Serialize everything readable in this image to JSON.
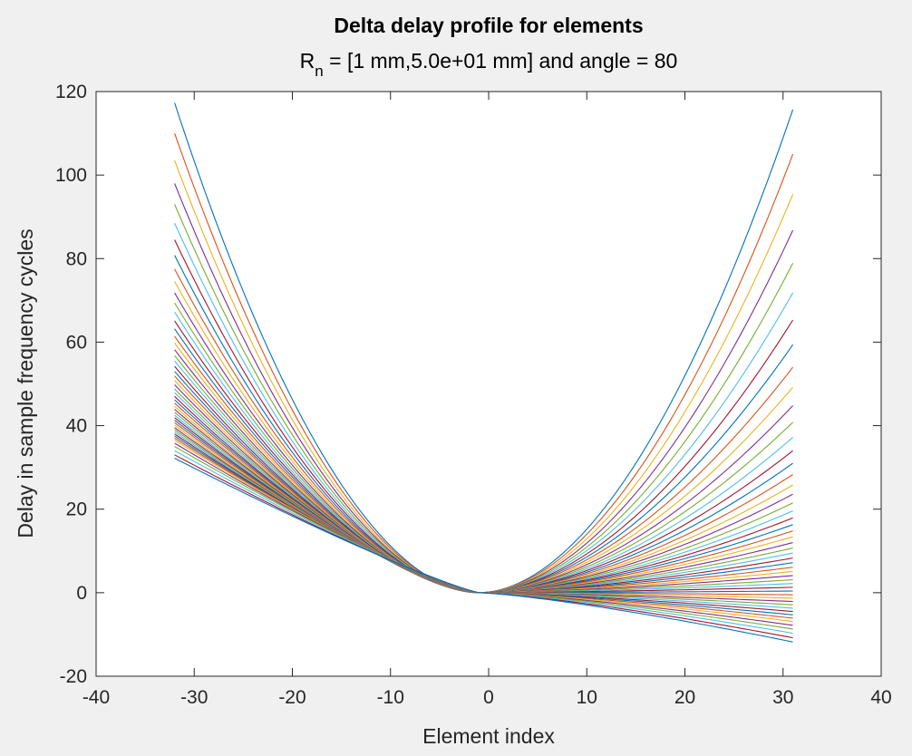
{
  "chart_data": {
    "type": "line",
    "title": "Delta delay profile for elements",
    "subtitle_main": "R",
    "subtitle_sub": "n",
    "subtitle_rest": " = [1 mm,5.0e+01 mm] and angle = 80",
    "xlabel": "Element index",
    "ylabel": "Delay in sample frequency cycles",
    "xlim": [
      -40,
      40
    ],
    "ylim": [
      -20,
      120
    ],
    "xticks": [
      -40,
      -30,
      -20,
      -10,
      0,
      10,
      20,
      30,
      40
    ],
    "yticks": [
      -20,
      0,
      20,
      40,
      60,
      80,
      100,
      120
    ],
    "x_range": [
      -32,
      31
    ],
    "grid": false,
    "series_count": 50,
    "r_min_mm": 1,
    "r_max_mm": 50,
    "angle_deg": 80,
    "endpoints_left": [
      117.3,
      110,
      103.5,
      98,
      93,
      88.5,
      84.5,
      80.8,
      77.5,
      74.5,
      71.8,
      69.4,
      67.2,
      65.1,
      63.2,
      61.4,
      59.8,
      58.2,
      56.8,
      55.5,
      54.2,
      53,
      51.9,
      50.8,
      49.8,
      48.8,
      47.9,
      47,
      46.2,
      45.4,
      44.6,
      43.9,
      43.2,
      42.5,
      41.9,
      41.3,
      40.7,
      40.1,
      39.5,
      39,
      38.5,
      38,
      37.5,
      37,
      36.5,
      35.8,
      35,
      34,
      33,
      32.2
    ],
    "endpoints_right": [
      115.7,
      105,
      95.4,
      86.8,
      78.9,
      71.8,
      65.3,
      59.4,
      54,
      49.2,
      44.8,
      40.8,
      37.2,
      34,
      31,
      28.3,
      25.8,
      23.6,
      21.5,
      19.6,
      17.9,
      16.3,
      14.8,
      13.4,
      12,
      10.7,
      9.5,
      8.3,
      7.2,
      6.1,
      5.1,
      4.1,
      3.1,
      2.2,
      1.3,
      0.4,
      -0.5,
      -1.3,
      -2.1,
      -2.9,
      -3.7,
      -4.5,
      -5.3,
      -6.1,
      -6.9,
      -7.8,
      -8.7,
      -9.7,
      -10.8,
      -11.8
    ],
    "colors": [
      "#0072bd",
      "#d95319",
      "#edb120",
      "#7e2f8e",
      "#77ac30",
      "#4dbeee",
      "#a2142f"
    ]
  }
}
